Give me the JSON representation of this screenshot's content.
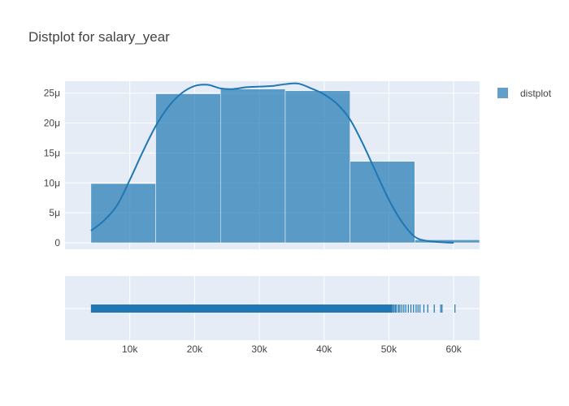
{
  "chart_data": {
    "type": "histogram",
    "title": "Distplot for salary_year",
    "xlabel": "",
    "ylabel": "",
    "legend": {
      "position": "top-right",
      "entries": [
        "distplot"
      ]
    },
    "grid": true,
    "xlim": [
      0,
      64000
    ],
    "ylim": [
      0,
      2.7e-05
    ],
    "x_ticks": [
      {
        "value": 10000,
        "label": "10k"
      },
      {
        "value": 20000,
        "label": "20k"
      },
      {
        "value": 30000,
        "label": "30k"
      },
      {
        "value": 40000,
        "label": "40k"
      },
      {
        "value": 50000,
        "label": "50k"
      },
      {
        "value": 60000,
        "label": "60k"
      }
    ],
    "y_ticks": [
      {
        "value": 0,
        "label": "0"
      },
      {
        "value": 5e-06,
        "label": "5μ"
      },
      {
        "value": 1e-05,
        "label": "10μ"
      },
      {
        "value": 1.5e-05,
        "label": "15μ"
      },
      {
        "value": 2e-05,
        "label": "20μ"
      },
      {
        "value": 2.5e-05,
        "label": "25μ"
      }
    ],
    "series": [
      {
        "name": "distplot",
        "kind": "histogram",
        "color": "#1f77b4",
        "bins": [
          {
            "x0": 4000,
            "x1": 14000,
            "value": 9.9e-06
          },
          {
            "x0": 14000,
            "x1": 24000,
            "value": 2.49e-05
          },
          {
            "x0": 24000,
            "x1": 34000,
            "value": 2.57e-05
          },
          {
            "x0": 34000,
            "x1": 44000,
            "value": 2.54e-05
          },
          {
            "x0": 44000,
            "x1": 54000,
            "value": 1.36e-05
          },
          {
            "x0": 54000,
            "x1": 64000,
            "value": 5e-07
          }
        ]
      },
      {
        "kind": "kde",
        "color": "#1f77b4",
        "x": [
          4000,
          6000,
          8000,
          10000,
          12000,
          14000,
          16000,
          18000,
          20000,
          22000,
          24000,
          26000,
          28000,
          30000,
          32000,
          34000,
          36000,
          38000,
          40000,
          42000,
          44000,
          46000,
          48000,
          50000,
          52000,
          54000,
          56000,
          58000,
          60000
        ],
        "y": [
          2e-06,
          3.7e-06,
          6.2e-06,
          1.05e-05,
          1.52e-05,
          1.95e-05,
          2.28e-05,
          2.5e-05,
          2.62e-05,
          2.64e-05,
          2.58e-05,
          2.57e-05,
          2.6e-05,
          2.61e-05,
          2.62e-05,
          2.65e-05,
          2.66e-05,
          2.58e-05,
          2.48e-05,
          2.32e-05,
          2.06e-05,
          1.65e-05,
          1.18e-05,
          7.2e-06,
          3.5e-06,
          1e-06,
          3e-07,
          1e-07,
          0
        ]
      },
      {
        "kind": "rug",
        "color": "#1f77b4",
        "dense_range": [
          4000,
          50500
        ],
        "sparse_points": [
          50600,
          50800,
          51000,
          51200,
          51500,
          51700,
          52000,
          52300,
          52600,
          53000,
          53400,
          53800,
          54200,
          54500,
          54800,
          55400,
          56000,
          57000,
          58000,
          58200,
          60200
        ]
      }
    ]
  }
}
